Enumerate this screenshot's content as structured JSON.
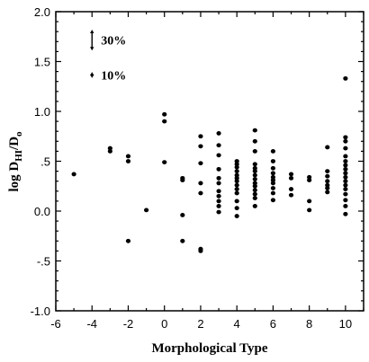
{
  "chart_data": {
    "type": "scatter",
    "xlabel": "Morphological Type",
    "ylabel": {
      "main": "log D",
      "sub1": "HI",
      "mid": "/D",
      "sub2": "o"
    },
    "xlim": [
      -6,
      11
    ],
    "ylim": [
      -1.0,
      2.0
    ],
    "x_ticks": [
      -6,
      -4,
      -2,
      0,
      2,
      4,
      6,
      8,
      10
    ],
    "x_tick_labels": [
      "-6",
      "-4",
      "-2",
      "0",
      "2",
      "4",
      "6",
      "8",
      "10"
    ],
    "y_ticks": [
      -1.0,
      -0.5,
      0.0,
      0.5,
      1.0,
      1.5,
      2.0
    ],
    "y_tick_labels": [
      "-1.0",
      "-.5",
      "0.0",
      ".5",
      "1.0",
      "1.5",
      "2.0"
    ],
    "grid": false,
    "annotations": [
      {
        "label": "30%",
        "x": -4,
        "y_low": 1.61,
        "y_high": 1.82
      },
      {
        "label": "10%",
        "x": -4,
        "y_low": 1.335,
        "y_high": 1.395
      }
    ],
    "points": [
      {
        "x": -5,
        "y": 0.37
      },
      {
        "x": -3,
        "y": 0.6
      },
      {
        "x": -3,
        "y": 0.63
      },
      {
        "x": -2,
        "y": 0.55
      },
      {
        "x": -2,
        "y": 0.5
      },
      {
        "x": -2,
        "y": -0.3
      },
      {
        "x": -1,
        "y": 0.01
      },
      {
        "x": 0,
        "y": 0.97
      },
      {
        "x": 0,
        "y": 0.9
      },
      {
        "x": 0,
        "y": 0.49
      },
      {
        "x": 1,
        "y": 0.33
      },
      {
        "x": 1,
        "y": 0.31
      },
      {
        "x": 1,
        "y": -0.04
      },
      {
        "x": 1,
        "y": -0.3
      },
      {
        "x": 2,
        "y": 0.75
      },
      {
        "x": 2,
        "y": 0.65
      },
      {
        "x": 2,
        "y": 0.48
      },
      {
        "x": 2,
        "y": 0.28
      },
      {
        "x": 2,
        "y": 0.18
      },
      {
        "x": 2,
        "y": -0.38
      },
      {
        "x": 2,
        "y": -0.4
      },
      {
        "x": 3,
        "y": 0.78
      },
      {
        "x": 3,
        "y": 0.66
      },
      {
        "x": 3,
        "y": 0.56
      },
      {
        "x": 3,
        "y": 0.42
      },
      {
        "x": 3,
        "y": 0.33
      },
      {
        "x": 3,
        "y": 0.28
      },
      {
        "x": 3,
        "y": 0.2
      },
      {
        "x": 3,
        "y": 0.15
      },
      {
        "x": 3,
        "y": 0.1
      },
      {
        "x": 3,
        "y": 0.05
      },
      {
        "x": 3,
        "y": -0.01
      },
      {
        "x": 4,
        "y": 0.5
      },
      {
        "x": 4,
        "y": 0.47
      },
      {
        "x": 4,
        "y": 0.44
      },
      {
        "x": 4,
        "y": 0.4
      },
      {
        "x": 4,
        "y": 0.36
      },
      {
        "x": 4,
        "y": 0.33
      },
      {
        "x": 4,
        "y": 0.3
      },
      {
        "x": 4,
        "y": 0.26
      },
      {
        "x": 4,
        "y": 0.22
      },
      {
        "x": 4,
        "y": 0.18
      },
      {
        "x": 4,
        "y": 0.1
      },
      {
        "x": 4,
        "y": 0.03
      },
      {
        "x": 4,
        "y": -0.05
      },
      {
        "x": 5,
        "y": 0.81
      },
      {
        "x": 5,
        "y": 0.7
      },
      {
        "x": 5,
        "y": 0.6
      },
      {
        "x": 5,
        "y": 0.47
      },
      {
        "x": 5,
        "y": 0.43
      },
      {
        "x": 5,
        "y": 0.4
      },
      {
        "x": 5,
        "y": 0.36
      },
      {
        "x": 5,
        "y": 0.32
      },
      {
        "x": 5,
        "y": 0.28
      },
      {
        "x": 5,
        "y": 0.25
      },
      {
        "x": 5,
        "y": 0.21
      },
      {
        "x": 5,
        "y": 0.17
      },
      {
        "x": 5,
        "y": 0.13
      },
      {
        "x": 5,
        "y": 0.05
      },
      {
        "x": 6,
        "y": 0.6
      },
      {
        "x": 6,
        "y": 0.5
      },
      {
        "x": 6,
        "y": 0.43
      },
      {
        "x": 6,
        "y": 0.38
      },
      {
        "x": 6,
        "y": 0.34
      },
      {
        "x": 6,
        "y": 0.31
      },
      {
        "x": 6,
        "y": 0.28
      },
      {
        "x": 6,
        "y": 0.23
      },
      {
        "x": 6,
        "y": 0.18
      },
      {
        "x": 6,
        "y": 0.11
      },
      {
        "x": 7,
        "y": 0.37
      },
      {
        "x": 7,
        "y": 0.33
      },
      {
        "x": 7,
        "y": 0.22
      },
      {
        "x": 7,
        "y": 0.16
      },
      {
        "x": 8,
        "y": 0.34
      },
      {
        "x": 8,
        "y": 0.31
      },
      {
        "x": 8,
        "y": 0.1
      },
      {
        "x": 8,
        "y": 0.01
      },
      {
        "x": 9,
        "y": 0.64
      },
      {
        "x": 9,
        "y": 0.4
      },
      {
        "x": 9,
        "y": 0.35
      },
      {
        "x": 9,
        "y": 0.3
      },
      {
        "x": 9,
        "y": 0.26
      },
      {
        "x": 9,
        "y": 0.23
      },
      {
        "x": 9,
        "y": 0.19
      },
      {
        "x": 10,
        "y": 1.33
      },
      {
        "x": 10,
        "y": 0.74
      },
      {
        "x": 10,
        "y": 0.7
      },
      {
        "x": 10,
        "y": 0.63
      },
      {
        "x": 10,
        "y": 0.55
      },
      {
        "x": 10,
        "y": 0.5
      },
      {
        "x": 10,
        "y": 0.46
      },
      {
        "x": 10,
        "y": 0.42
      },
      {
        "x": 10,
        "y": 0.38
      },
      {
        "x": 10,
        "y": 0.34
      },
      {
        "x": 10,
        "y": 0.3
      },
      {
        "x": 10,
        "y": 0.26
      },
      {
        "x": 10,
        "y": 0.22
      },
      {
        "x": 10,
        "y": 0.17
      },
      {
        "x": 10,
        "y": 0.11
      },
      {
        "x": 10,
        "y": 0.05
      },
      {
        "x": 10,
        "y": -0.03
      }
    ]
  }
}
